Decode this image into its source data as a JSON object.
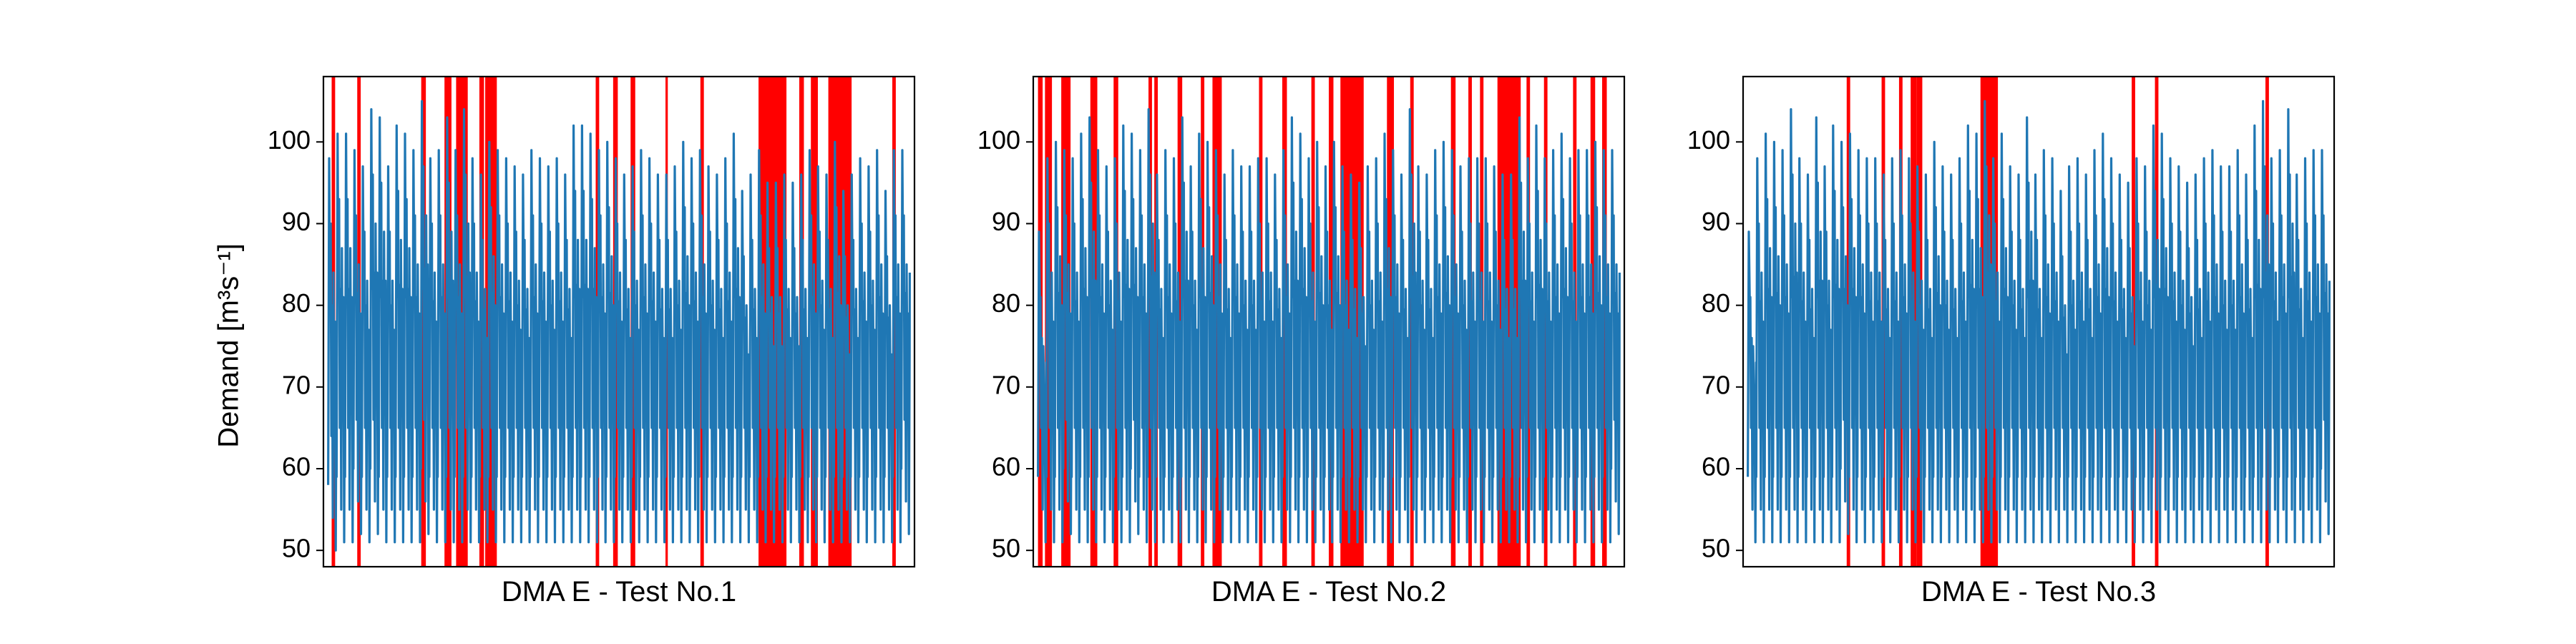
{
  "figure": {
    "ylabel": "Demand [m³s⁻¹]"
  },
  "chart_data": [
    {
      "type": "line",
      "title": "DMA E - Test No.1",
      "xlabel": "DMA E - Test No.1",
      "ylabel": "Demand [m³s⁻¹]",
      "ylim": [
        48,
        108
      ],
      "xlim": [
        0,
        1
      ],
      "y_ticks": [
        50,
        60,
        70,
        80,
        90,
        100
      ],
      "x_ticks": [],
      "grid": false,
      "series": [
        {
          "color": "#1f77b4",
          "cycles": 69,
          "peak_values": [
            98,
            101,
            101,
            99,
            97,
            104,
            103,
            97,
            102,
            101,
            99,
            105,
            98,
            99,
            103,
            99,
            104,
            98,
            96,
            100,
            99,
            98,
            97,
            96,
            99,
            98,
            97,
            98,
            96,
            102,
            102,
            101,
            99,
            100,
            98,
            96,
            97,
            99,
            98,
            96,
            96,
            97,
            100,
            98,
            99,
            97,
            96,
            98,
            101,
            94,
            96,
            99,
            95,
            95,
            96,
            95,
            96,
            99,
            97,
            96,
            100,
            94,
            96,
            98,
            97,
            99,
            94,
            99,
            99
          ],
          "trough_values": [
            50,
            51,
            51,
            52,
            51,
            52,
            51,
            51,
            51,
            51,
            51,
            52,
            51,
            51,
            51,
            51,
            51,
            51,
            51,
            51,
            51,
            51,
            51,
            51,
            51,
            51,
            51,
            51,
            51,
            51,
            51,
            51,
            51,
            51,
            51,
            51,
            51,
            51,
            51,
            51,
            51,
            51,
            51,
            51,
            51,
            51,
            51,
            51,
            51,
            51,
            51,
            51,
            51,
            51,
            51,
            51,
            51,
            51,
            51,
            51,
            51,
            51,
            51,
            51,
            51,
            51,
            51,
            51,
            52
          ],
          "end_value": 84
        }
      ],
      "anomaly_color": "#ff0000",
      "anomalies": [
        [
          0.006,
          0.012
        ],
        [
          0.05,
          0.056
        ],
        [
          0.16,
          0.168
        ],
        [
          0.2,
          0.212
        ],
        [
          0.22,
          0.24
        ],
        [
          0.26,
          0.268
        ],
        [
          0.27,
          0.29
        ],
        [
          0.46,
          0.466
        ],
        [
          0.49,
          0.498
        ],
        [
          0.52,
          0.528
        ],
        [
          0.58,
          0.584
        ],
        [
          0.64,
          0.646
        ],
        [
          0.74,
          0.788
        ],
        [
          0.81,
          0.818
        ],
        [
          0.83,
          0.842
        ],
        [
          0.86,
          0.9
        ],
        [
          0.97,
          0.976
        ]
      ]
    },
    {
      "type": "line",
      "title": "DMA E - Test No.2",
      "xlabel": "DMA E - Test No.2",
      "ylabel": "",
      "ylim": [
        48,
        108
      ],
      "xlim": [
        0,
        1
      ],
      "y_ticks": [
        50,
        60,
        70,
        80,
        90,
        100
      ],
      "x_ticks": [],
      "grid": false,
      "series": [
        {
          "color": "#1f77b4",
          "cycles": 69,
          "peak_values": [
            89,
            98,
            100,
            99,
            98,
            101,
            103,
            99,
            97,
            98,
            102,
            101,
            99,
            104,
            96,
            99,
            98,
            103,
            97,
            101,
            100,
            99,
            96,
            99,
            97,
            97,
            98,
            98,
            96,
            99,
            103,
            101,
            98,
            100,
            97,
            100,
            97,
            96,
            95,
            97,
            98,
            101,
            99,
            96,
            104,
            97,
            96,
            99,
            100,
            99,
            97,
            98,
            98,
            98,
            97,
            96,
            96,
            103,
            98,
            102,
            98,
            99,
            101,
            98,
            99,
            99,
            100,
            99,
            99
          ],
          "trough_values": [
            51,
            51,
            51,
            52,
            51,
            51,
            51,
            51,
            51,
            51,
            51,
            52,
            51,
            51,
            51,
            51,
            51,
            51,
            51,
            51,
            51,
            51,
            51,
            51,
            51,
            51,
            51,
            51,
            51,
            51,
            51,
            51,
            51,
            51,
            51,
            51,
            51,
            51,
            51,
            51,
            51,
            51,
            51,
            51,
            51,
            51,
            51,
            51,
            51,
            51,
            51,
            51,
            51,
            51,
            51,
            51,
            51,
            51,
            51,
            51,
            51,
            51,
            51,
            51,
            51,
            51,
            51,
            51,
            52
          ],
          "end_value": 84
        }
      ],
      "anomaly_color": "#ff0000",
      "anomalies": [
        [
          0.0,
          0.008
        ],
        [
          0.012,
          0.024
        ],
        [
          0.04,
          0.056
        ],
        [
          0.09,
          0.102
        ],
        [
          0.13,
          0.138
        ],
        [
          0.19,
          0.196
        ],
        [
          0.2,
          0.206
        ],
        [
          0.24,
          0.248
        ],
        [
          0.28,
          0.286
        ],
        [
          0.3,
          0.316
        ],
        [
          0.38,
          0.386
        ],
        [
          0.42,
          0.428
        ],
        [
          0.47,
          0.476
        ],
        [
          0.5,
          0.508
        ],
        [
          0.52,
          0.56
        ],
        [
          0.6,
          0.612
        ],
        [
          0.64,
          0.646
        ],
        [
          0.71,
          0.718
        ],
        [
          0.74,
          0.746
        ],
        [
          0.76,
          0.766
        ],
        [
          0.79,
          0.83
        ],
        [
          0.84,
          0.846
        ],
        [
          0.87,
          0.876
        ],
        [
          0.92,
          0.926
        ],
        [
          0.95,
          0.958
        ],
        [
          0.97,
          0.978
        ]
      ]
    },
    {
      "type": "line",
      "title": "DMA E - Test No.3",
      "xlabel": "DMA E - Test No.3",
      "ylabel": "",
      "ylim": [
        48,
        108
      ],
      "xlim": [
        0,
        1
      ],
      "y_ticks": [
        50,
        60,
        70,
        80,
        90,
        100
      ],
      "x_ticks": [],
      "grid": false,
      "series": [
        {
          "color": "#1f77b4",
          "cycles": 69,
          "peak_values": [
            89,
            98,
            101,
            100,
            99,
            104,
            98,
            96,
            103,
            97,
            102,
            100,
            101,
            99,
            98,
            98,
            96,
            98,
            99,
            98,
            97,
            96,
            100,
            97,
            96,
            98,
            102,
            101,
            105,
            98,
            101,
            97,
            96,
            103,
            96,
            99,
            98,
            94,
            97,
            98,
            96,
            99,
            101,
            98,
            96,
            95,
            98,
            97,
            102,
            101,
            98,
            97,
            95,
            96,
            98,
            99,
            97,
            97,
            99,
            96,
            102,
            105,
            98,
            99,
            104,
            96,
            98,
            99,
            99
          ],
          "trough_values": [
            51,
            51,
            51,
            51,
            51,
            51,
            51,
            51,
            51,
            51,
            51,
            52,
            51,
            51,
            51,
            51,
            51,
            51,
            51,
            51,
            51,
            51,
            51,
            51,
            51,
            51,
            51,
            51,
            51,
            51,
            51,
            51,
            51,
            51,
            51,
            51,
            51,
            51,
            51,
            51,
            51,
            51,
            51,
            51,
            51,
            51,
            51,
            51,
            51,
            51,
            51,
            51,
            51,
            51,
            51,
            51,
            51,
            51,
            51,
            51,
            51,
            51,
            51,
            51,
            51,
            51,
            51,
            51,
            52
          ],
          "end_value": 83
        }
      ],
      "anomaly_color": "#ff0000",
      "anomalies": [
        [
          0.17,
          0.176
        ],
        [
          0.23,
          0.236
        ],
        [
          0.26,
          0.266
        ],
        [
          0.28,
          0.29
        ],
        [
          0.29,
          0.3
        ],
        [
          0.4,
          0.43
        ],
        [
          0.66,
          0.666
        ],
        [
          0.7,
          0.706
        ],
        [
          0.89,
          0.896
        ]
      ]
    }
  ]
}
